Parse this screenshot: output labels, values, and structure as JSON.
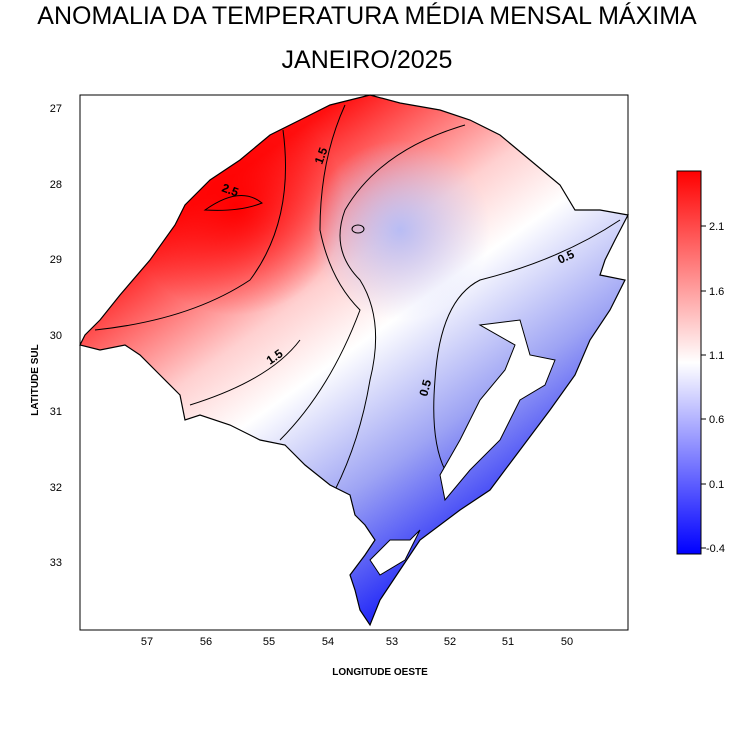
{
  "title": "ANOMALIA DA TEMPERATURA MÉDIA MENSAL MÁXIMA",
  "subtitle": "JANEIRO/2025",
  "map": {
    "xlabel": "LONGITUDE OESTE",
    "ylabel": "LATITUDE SUL",
    "lon_ticks": [
      "57",
      "56",
      "55",
      "54",
      "53",
      "52",
      "51",
      "50"
    ],
    "lat_ticks": [
      "27",
      "28",
      "29",
      "30",
      "31",
      "32",
      "33"
    ],
    "contour_labels": [
      "2.5",
      "1.5",
      "1.5",
      "0.5",
      "0.5",
      "0"
    ]
  },
  "colorbar": {
    "ticks": [
      "2.1",
      "1.6",
      "1.1",
      "0.6",
      "0.1",
      "-0.4"
    ],
    "range": [
      -0.4,
      2.5
    ],
    "colors": {
      "low": "#0000ff",
      "mid": "#ffffff",
      "high": "#ff0000"
    }
  }
}
